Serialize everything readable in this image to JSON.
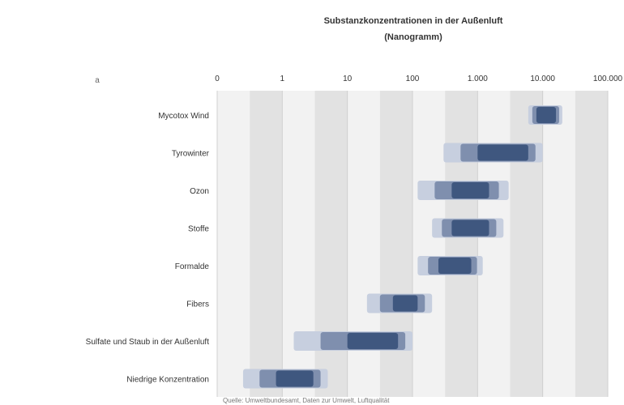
{
  "chart_data": {
    "type": "bar",
    "title_line1": "Substanzkonzentrationen in der Außenluft",
    "title_line2": "(Nanogramm)",
    "corner_label": "a",
    "x_scale": "log",
    "x_ticks": [
      "0",
      "1",
      "10",
      "100",
      "1.000",
      "10.000",
      "100.000"
    ],
    "categories": [
      "Mycotox Wind",
      "Tyrowinter",
      "Ozon",
      "Stoffe",
      "Formalde",
      "Fibers",
      "Sulfate und Staub in der Außenluft",
      "Niedrige Konzentration"
    ],
    "ranges": [
      {
        "low": 6000,
        "high": 20000,
        "core_low": 8000,
        "core_high": 16000
      },
      {
        "low": 300,
        "high": 10000,
        "core_low": 1000,
        "core_high": 6000
      },
      {
        "low": 120,
        "high": 3000,
        "core_low": 400,
        "core_high": 1500
      },
      {
        "low": 200,
        "high": 2500,
        "core_low": 400,
        "core_high": 1500
      },
      {
        "low": 120,
        "high": 1200,
        "core_low": 250,
        "core_high": 800
      },
      {
        "low": 20,
        "high": 200,
        "core_low": 50,
        "core_high": 120
      },
      {
        "low": 1.5,
        "high": 100,
        "core_low": 10,
        "core_high": 60
      },
      {
        "low": 0.25,
        "high": 5,
        "core_low": 0.8,
        "core_high": 3
      }
    ],
    "source_note": "Quelle: Umweltbundesamt, Daten zur Umwelt, Luftqualität",
    "colors": {
      "core": "#3f577f",
      "mid": "#7f8fae",
      "light": "#c7cfdf",
      "band_a": "#f2f2f2",
      "band_b": "#e2e2e2"
    }
  }
}
